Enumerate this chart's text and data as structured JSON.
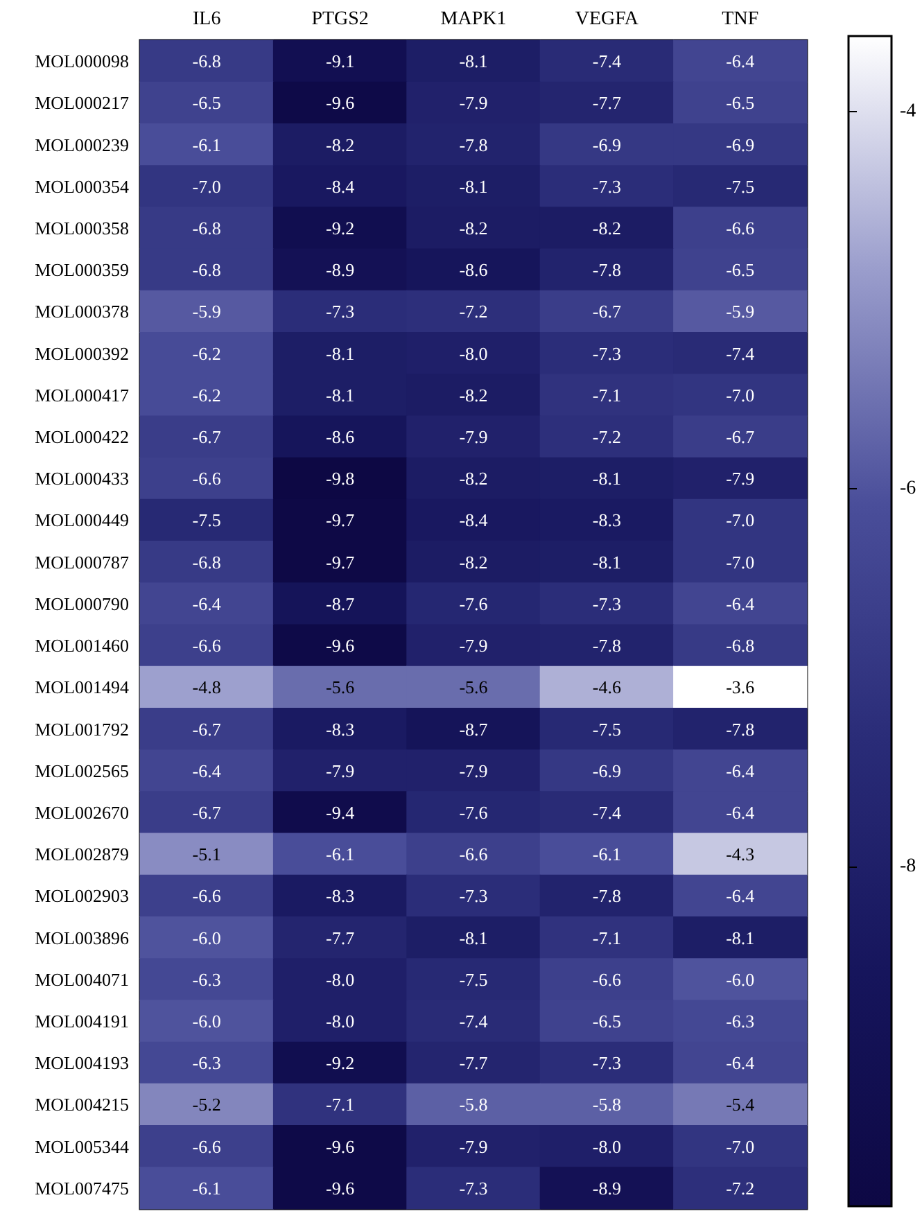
{
  "chart_data": {
    "type": "heatmap",
    "categories": [
      "IL6",
      "PTGS2",
      "MAPK1",
      "VEGFA",
      "TNF"
    ],
    "y_categories": [
      "MOL000098",
      "MOL000217",
      "MOL000239",
      "MOL000354",
      "MOL000358",
      "MOL000359",
      "MOL000378",
      "MOL000392",
      "MOL000417",
      "MOL000422",
      "MOL000433",
      "MOL000449",
      "MOL000787",
      "MOL000790",
      "MOL001460",
      "MOL001494",
      "MOL001792",
      "MOL002565",
      "MOL002670",
      "MOL002879",
      "MOL002903",
      "MOL003896",
      "MOL004071",
      "MOL004191",
      "MOL004193",
      "MOL004215",
      "MOL005344",
      "MOL007475"
    ],
    "cells": [
      [
        -6.8,
        -9.1,
        -8.1,
        -7.4,
        -6.4
      ],
      [
        -6.5,
        -9.6,
        -7.9,
        -7.7,
        -6.5
      ],
      [
        -6.1,
        -8.2,
        -7.8,
        -6.9,
        -6.9
      ],
      [
        -7.0,
        -8.4,
        -8.1,
        -7.3,
        -7.5
      ],
      [
        -6.8,
        -9.2,
        -8.2,
        -8.2,
        -6.6
      ],
      [
        -6.8,
        -8.9,
        -8.6,
        -7.8,
        -6.5
      ],
      [
        -5.9,
        -7.3,
        -7.2,
        -6.7,
        -5.9
      ],
      [
        -6.2,
        -8.1,
        -8.0,
        -7.3,
        -7.4
      ],
      [
        -6.2,
        -8.1,
        -8.2,
        -7.1,
        -7.0
      ],
      [
        -6.7,
        -8.6,
        -7.9,
        -7.2,
        -6.7
      ],
      [
        -6.6,
        -9.8,
        -8.2,
        -8.1,
        -7.9
      ],
      [
        -7.5,
        -9.7,
        -8.4,
        -8.3,
        -7.0
      ],
      [
        -6.8,
        -9.7,
        -8.2,
        -8.1,
        -7.0
      ],
      [
        -6.4,
        -8.7,
        -7.6,
        -7.3,
        -6.4
      ],
      [
        -6.6,
        -9.6,
        -7.9,
        -7.8,
        -6.8
      ],
      [
        -4.8,
        -5.6,
        -5.6,
        -4.6,
        -3.6
      ],
      [
        -6.7,
        -8.3,
        -8.7,
        -7.5,
        -7.8
      ],
      [
        -6.4,
        -7.9,
        -7.9,
        -6.9,
        -6.4
      ],
      [
        -6.7,
        -9.4,
        -7.6,
        -7.4,
        -6.4
      ],
      [
        -5.1,
        -6.1,
        -6.6,
        -6.1,
        -4.3
      ],
      [
        -6.6,
        -8.3,
        -7.3,
        -7.8,
        -6.4
      ],
      [
        -6.0,
        -7.7,
        -8.1,
        -7.1,
        -8.1
      ],
      [
        -6.3,
        -8.0,
        -7.5,
        -6.6,
        -6.0
      ],
      [
        -6.0,
        -8.0,
        -7.4,
        -6.5,
        -6.3
      ],
      [
        -6.3,
        -9.2,
        -7.7,
        -7.3,
        -6.4
      ],
      [
        -5.2,
        -7.1,
        -5.8,
        -5.8,
        -5.4
      ],
      [
        -6.6,
        -9.6,
        -7.9,
        -8.0,
        -7.0
      ],
      [
        -6.1,
        -9.6,
        -7.3,
        -8.9,
        -7.2
      ]
    ],
    "cell_labels": [
      [
        "-6.8",
        "-9.1",
        "-8.1",
        "-7.4",
        "-6.4"
      ],
      [
        "-6.5",
        "-9.6",
        "-7.9",
        "-7.7",
        "-6.5"
      ],
      [
        "-6.1",
        "-8.2",
        "-7.8",
        "-6.9",
        "-6.9"
      ],
      [
        "-7.0",
        "-8.4",
        "-8.1",
        "-7.3",
        "-7.5"
      ],
      [
        "-6.8",
        "-9.2",
        "-8.2",
        "-8.2",
        "-6.6"
      ],
      [
        "-6.8",
        "-8.9",
        "-8.6",
        "-7.8",
        "-6.5"
      ],
      [
        "-5.9",
        "-7.3",
        "-7.2",
        "-6.7",
        "-5.9"
      ],
      [
        "-6.2",
        "-8.1",
        "-8.0",
        "-7.3",
        "-7.4"
      ],
      [
        "-6.2",
        "-8.1",
        "-8.2",
        "-7.1",
        "-7.0"
      ],
      [
        "-6.7",
        "-8.6",
        "-7.9",
        "-7.2",
        "-6.7"
      ],
      [
        "-6.6",
        "-9.8",
        "-8.2",
        "-8.1",
        "-7.9"
      ],
      [
        "-7.5",
        "-9.7",
        "-8.4",
        "-8.3",
        "-7.0"
      ],
      [
        "-6.8",
        "-9.7",
        "-8.2",
        "-8.1",
        "-7.0"
      ],
      [
        "-6.4",
        "-8.7",
        "-7.6",
        "-7.3",
        "-6.4"
      ],
      [
        "-6.6",
        "-9.6",
        "-7.9",
        "-7.8",
        "-6.8"
      ],
      [
        "-4.8",
        "-5.6",
        "-5.6",
        "-4.6",
        "-3.6"
      ],
      [
        "-6.7",
        "-8.3",
        "-8.7",
        "-7.5",
        "-7.8"
      ],
      [
        "-6.4",
        "-7.9",
        "-7.9",
        "-6.9",
        "-6.4"
      ],
      [
        "-6.7",
        "-9.4",
        "-7.6",
        "-7.4",
        "-6.4"
      ],
      [
        "-5.1",
        "-6.1",
        "-6.6",
        "-6.1",
        "-4.3"
      ],
      [
        "-6.6",
        "-8.3",
        "-7.3",
        "-7.8",
        "-6.4"
      ],
      [
        "-6.0",
        "-7.7",
        "-8.1",
        "-7.1",
        "-8.1"
      ],
      [
        "-6.3",
        "-8.0",
        "-7.5",
        "-6.6",
        "-6.0"
      ],
      [
        "-6.0",
        "-8.0",
        "-7.4",
        "-6.5",
        "-6.3"
      ],
      [
        "-6.3",
        "-9.2",
        "-7.7",
        "-7.3",
        "-6.4"
      ],
      [
        "-5.2",
        "-7.1",
        "-5.8",
        "-5.8",
        "-5.4"
      ],
      [
        "-6.6",
        "-9.6",
        "-7.9",
        "-8.0",
        "-7.0"
      ],
      [
        "-6.1",
        "-9.6",
        "-7.3",
        "-8.9",
        "-7.2"
      ]
    ],
    "data_labels": true,
    "clim": [
      -9.8,
      -3.6
    ],
    "cticks": [
      -4,
      -6,
      -8
    ]
  }
}
